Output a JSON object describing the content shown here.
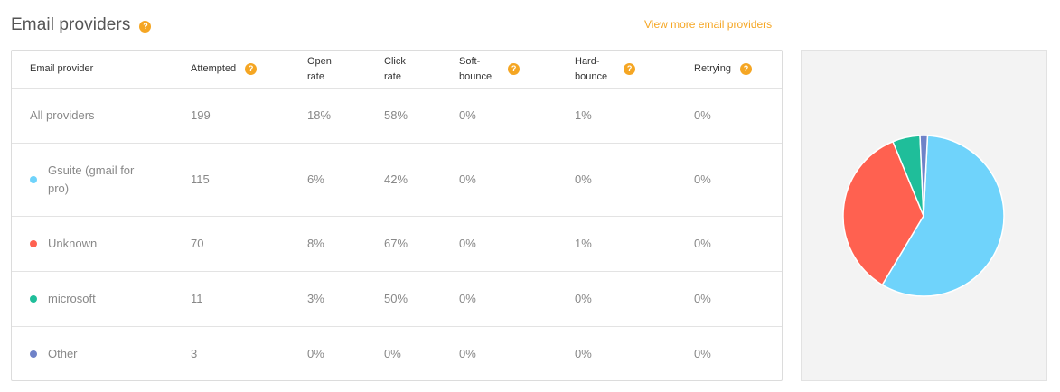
{
  "header": {
    "title": "Email providers",
    "help_icon": "?",
    "view_more_label": "View more email providers"
  },
  "table": {
    "columns": [
      {
        "label": "Email provider",
        "line1": "Email provider",
        "line2": "",
        "help": false
      },
      {
        "label": "Attempted",
        "line1": "Attempted",
        "line2": "",
        "help": true
      },
      {
        "label": "Open rate",
        "line1": "Open",
        "line2": "rate",
        "help": false
      },
      {
        "label": "Click rate",
        "line1": "Click",
        "line2": "rate",
        "help": false
      },
      {
        "label": "Soft-bounce",
        "line1": "Soft-",
        "line2": "bounce",
        "help": true
      },
      {
        "label": "Hard-bounce",
        "line1": "Hard-",
        "line2": "bounce",
        "help": true
      },
      {
        "label": "Retrying",
        "line1": "Retrying",
        "line2": "",
        "help": true
      }
    ],
    "rows": [
      {
        "provider": "All providers",
        "dot_color": "",
        "attempted": "199",
        "open_rate": "18%",
        "click_rate": "58%",
        "soft_bounce": "0%",
        "hard_bounce": "1%",
        "retrying": "0%"
      },
      {
        "provider": "Gsuite (gmail for pro)",
        "provider_line1": "Gsuite (gmail for",
        "provider_line2": "pro)",
        "dot_color": "#6fd3fb",
        "attempted": "115",
        "open_rate": "6%",
        "click_rate": "42%",
        "soft_bounce": "0%",
        "hard_bounce": "0%",
        "retrying": "0%"
      },
      {
        "provider": "Unknown",
        "dot_color": "#ff6150",
        "attempted": "70",
        "open_rate": "8%",
        "click_rate": "67%",
        "soft_bounce": "0%",
        "hard_bounce": "1%",
        "retrying": "0%"
      },
      {
        "provider": "microsoft",
        "dot_color": "#1fbe9a",
        "attempted": "11",
        "open_rate": "3%",
        "click_rate": "50%",
        "soft_bounce": "0%",
        "hard_bounce": "0%",
        "retrying": "0%"
      },
      {
        "provider": "Other",
        "dot_color": "#6f82c8",
        "attempted": "3",
        "open_rate": "0%",
        "click_rate": "0%",
        "soft_bounce": "0%",
        "hard_bounce": "0%",
        "retrying": "0%"
      }
    ]
  },
  "chart_data": {
    "type": "pie",
    "title": "",
    "legend": "none",
    "slices": [
      {
        "label": "Gsuite (gmail for pro)",
        "value": 115,
        "color": "#6fd3fb"
      },
      {
        "label": "Unknown",
        "value": 70,
        "color": "#ff6150"
      },
      {
        "label": "microsoft",
        "value": 11,
        "color": "#1fbe9a"
      },
      {
        "label": "Other",
        "value": 3,
        "color": "#6f82c8"
      }
    ]
  }
}
